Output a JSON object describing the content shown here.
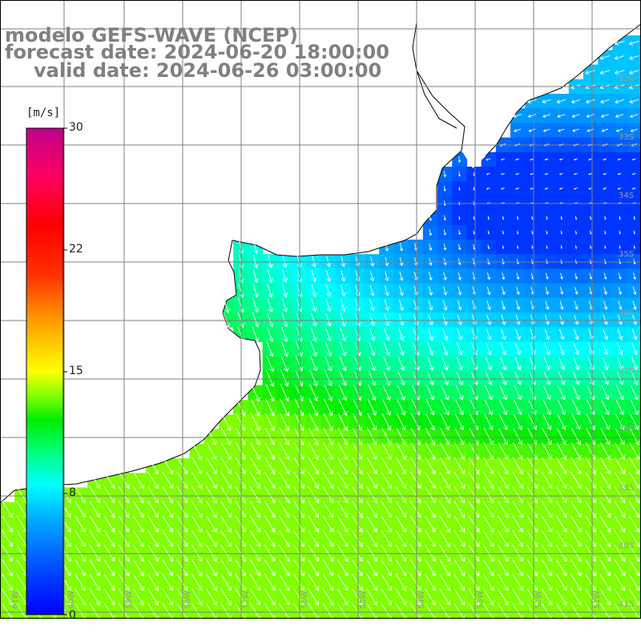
{
  "header": {
    "line1": "modelo GEFS-WAVE (NCEP)",
    "line2": "forecast date: 2024-06-20 18:00:00",
    "line3": "valid date: 2024-06-26 03:00:00"
  },
  "colorbar": {
    "unit": "[m/s]",
    "ticks": [
      "30",
      "22",
      "15",
      "8",
      "0"
    ],
    "min": 0,
    "max": 30,
    "colors": [
      "#0000ff",
      "#00a8ff",
      "#00ffff",
      "#00ff60",
      "#00e000",
      "#80ff00",
      "#ffff00",
      "#ff8000",
      "#ff0000",
      "#ff0060",
      "#c0008c"
    ]
  },
  "grid": {
    "lat_labels": [
      "32S",
      "33S",
      "34S",
      "35S",
      "36S",
      "37S",
      "38S",
      "39S",
      "40S",
      "41S"
    ],
    "lon_labels": [
      "61W",
      "60W",
      "59W",
      "58W",
      "57W",
      "56W",
      "55W",
      "54W",
      "53W",
      "52W",
      "51W"
    ]
  },
  "colors": {
    "land": "#ffffff",
    "coast": "#000000",
    "grid": "#7f7f7f",
    "arrow": "#ffffff",
    "label": "#9a9a9a"
  }
}
